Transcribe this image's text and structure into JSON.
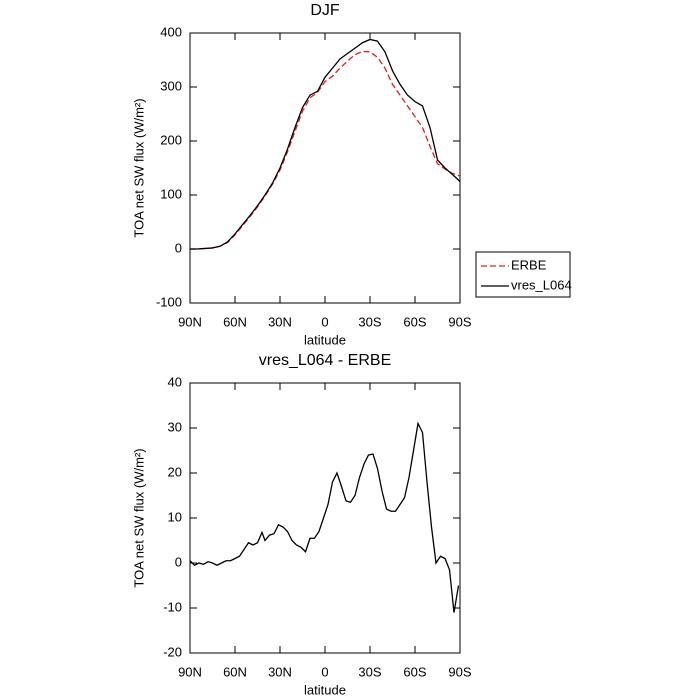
{
  "chart_data": [
    {
      "type": "line",
      "title": "DJF",
      "xlabel": "latitude",
      "ylabel": "TOA net SW flux (W/m²)",
      "x": [
        90,
        85,
        80,
        75,
        70,
        65,
        60,
        55,
        50,
        45,
        40,
        35,
        30,
        25,
        20,
        15,
        10,
        5,
        0,
        -5,
        -10,
        -15,
        -20,
        -25,
        -30,
        -35,
        -40,
        -45,
        -50,
        -55,
        -60,
        -65,
        -70,
        -75,
        -80,
        -85,
        -90
      ],
      "series": [
        {
          "name": "ERBE",
          "color": "#e0201b",
          "line_style": "dashed",
          "values": [
            0,
            0,
            1,
            2,
            5,
            12,
            26,
            43,
            60,
            78,
            98,
            120,
            146,
            180,
            218,
            255,
            280,
            290,
            310,
            320,
            335,
            348,
            360,
            366,
            365,
            355,
            335,
            305,
            285,
            265,
            245,
            225,
            190,
            158,
            148,
            140,
            135
          ]
        },
        {
          "name": "vres_L064",
          "color": "#000000",
          "line_style": "solid",
          "values": [
            0,
            0,
            1,
            2,
            5,
            13,
            28,
            45,
            62,
            80,
            100,
            122,
            150,
            185,
            225,
            262,
            285,
            292,
            318,
            335,
            352,
            362,
            372,
            382,
            388,
            385,
            365,
            330,
            305,
            285,
            273,
            265,
            225,
            165,
            150,
            138,
            125
          ]
        }
      ],
      "xlim": [
        90,
        -90
      ],
      "xticks": [
        {
          "value": 90,
          "label": "90N"
        },
        {
          "value": 60,
          "label": "60N"
        },
        {
          "value": 30,
          "label": "30N"
        },
        0,
        {
          "value": -30,
          "label": "30S"
        },
        {
          "value": -60,
          "label": "60S"
        },
        {
          "value": -90,
          "label": "90S"
        }
      ],
      "ylim": [
        -100,
        400
      ],
      "yticks": [
        -100,
        0,
        100,
        200,
        300,
        400
      ],
      "legend": "right"
    },
    {
      "type": "line",
      "title": "vres_L064 - ERBE",
      "xlabel": "latitude",
      "ylabel": "TOA net SW flux (W/m²)",
      "x": [
        90,
        87,
        84,
        81,
        78,
        75,
        72,
        69,
        66,
        63,
        60,
        57,
        54,
        51,
        48,
        45,
        42,
        40,
        37,
        34,
        31,
        28,
        25,
        22,
        19,
        16,
        13,
        10,
        7,
        4,
        1,
        -2,
        -5,
        -8,
        -11,
        -14,
        -17,
        -20,
        -23,
        -26,
        -29,
        -32,
        -35,
        -38,
        -41,
        -44,
        -47,
        -50,
        -53,
        -56,
        -59,
        -62,
        -65,
        -68,
        -71,
        -74,
        -77,
        -80,
        -83,
        -86,
        -89
      ],
      "series": [
        {
          "color": "#000000",
          "line_style": "solid",
          "values": [
            0.5,
            -0.5,
            0,
            -0.3,
            0.3,
            0,
            -0.5,
            0,
            0.5,
            0.5,
            1,
            1.5,
            3,
            4.5,
            4,
            4.5,
            6.8,
            5,
            6.2,
            6.5,
            8.5,
            8,
            7,
            5,
            4,
            3.5,
            2.5,
            5.5,
            5.5,
            7,
            10,
            13,
            18,
            20,
            17,
            13.8,
            13.5,
            15,
            19,
            22,
            24,
            24.2,
            21,
            16,
            12,
            11.5,
            11.5,
            13,
            14.5,
            19,
            25,
            31,
            29,
            18,
            8,
            0,
            1.5,
            1,
            -1.5,
            -11,
            -5
          ]
        }
      ],
      "xlim": [
        90,
        -90
      ],
      "xticks": [
        {
          "value": 90,
          "label": "90N"
        },
        {
          "value": 60,
          "label": "60N"
        },
        {
          "value": 30,
          "label": "30N"
        },
        0,
        {
          "value": -30,
          "label": "30S"
        },
        {
          "value": -60,
          "label": "60S"
        },
        {
          "value": -90,
          "label": "90S"
        }
      ],
      "ylim": [
        -20,
        40
      ],
      "yticks": [
        -20,
        -10,
        0,
        10,
        20,
        30,
        40
      ]
    }
  ]
}
